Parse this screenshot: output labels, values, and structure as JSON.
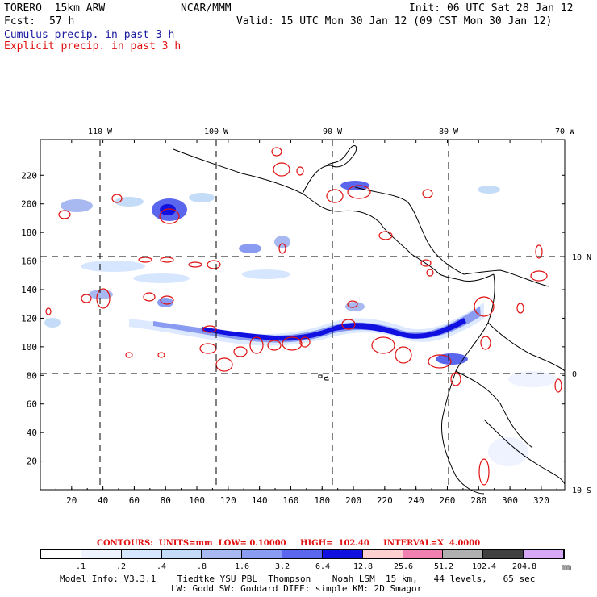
{
  "header": {
    "model": "TORERO  15km ARW",
    "center": "NCAR/MMM",
    "init": "Init: 06 UTC Sat 28 Jan 12",
    "fcst_label": "Fcst:",
    "fcst_value": "57 h",
    "valid": "Valid: 15 UTC Mon 30 Jan 12 (09 CST Mon 30 Jan 12)",
    "cumulus": "Cumulus precip. in past 3 h",
    "explicit": "Explicit precip. in past 3 h"
  },
  "colors": {
    "cumulus_text": "#1a1aa0",
    "explicit_text": "#e01010",
    "contour": "#e01010",
    "fill_light": "#dde9ff",
    "fill_mid": "#8a9cf2",
    "fill_dark": "#1010e0"
  },
  "map": {
    "lon_labels": [
      "110 W",
      "100 W",
      "90 W",
      "80 W",
      "70 W"
    ],
    "lat_labels": [
      "10 N",
      "0",
      "10 S"
    ],
    "y_ticks": [
      "220",
      "200",
      "180",
      "160",
      "140",
      "120",
      "100",
      "80",
      "60",
      "40",
      "20"
    ],
    "x_ticks": [
      "20",
      "40",
      "60",
      "80",
      "100",
      "120",
      "140",
      "160",
      "180",
      "200",
      "220",
      "240",
      "260",
      "280",
      "300",
      "320"
    ]
  },
  "contour_info": {
    "units": "CONTOURS:  UNITS=mm  LOW= 0.10000     HIGH=  102.40     INTERVAL=X  4.0000"
  },
  "legend": {
    "colors": [
      "#ffffff",
      "#eef3ff",
      "#d7e6ff",
      "#c4dcf7",
      "#a8b8f0",
      "#8a9cf2",
      "#5a66ee",
      "#1010e0",
      "#ffd0d0",
      "#f080b0",
      "#b0b0b0",
      "#404040",
      "#d8a8f8"
    ],
    "labels": [
      ".1",
      ".2",
      ".4",
      ".8",
      "1.6",
      "3.2",
      "6.4",
      "12.8",
      "25.6",
      "51.2",
      "102.4",
      "204.8"
    ],
    "unit": "mm"
  },
  "footer": {
    "line1": "Model Info: V3.3.1    Tiedtke YSU PBL  Thompson    Noah LSM  15 km,   44 levels,   65 sec",
    "line2": "LW: Godd SW: Goddard DIFF: simple KM: 2D Smagor"
  }
}
